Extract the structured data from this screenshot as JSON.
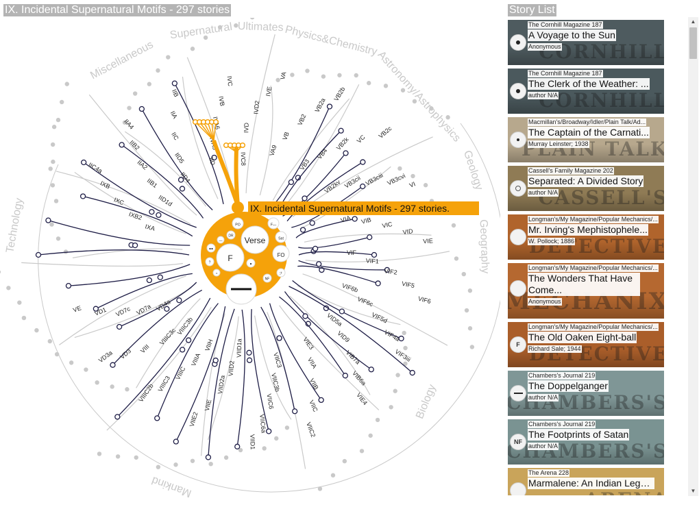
{
  "viz": {
    "title": "IX. Incidental Supernatural Motifs - 297 stories",
    "tooltip": "IX. Incidental Supernatural Motifs - 297 stories.",
    "center_label": "IX",
    "categories": [
      "Supernatural",
      "Ultimates",
      "Physics&Chemistry",
      "Astronomy/Astrophysics",
      "Geology",
      "Geography",
      "Biology",
      "Mankind",
      "Technology",
      "Miscellaneous"
    ],
    "center_bubbles": [
      {
        "label": "F",
        "tone": "white"
      },
      {
        "label": "",
        "tone": "white"
      },
      {
        "label": "FO",
        "tone": "white"
      },
      {
        "label": "Verse",
        "tone": "white"
      },
      {
        "label": "F—",
        "tone": "white"
      },
      {
        "label": "Sat",
        "tone": "white"
      },
      {
        "label": "PO",
        "tone": "white"
      },
      {
        "label": "DR",
        "tone": "white"
      },
      {
        "label": "?",
        "tone": "white"
      },
      {
        "label": "●●",
        "tone": "white"
      },
      {
        "label": "NF",
        "tone": "white"
      },
      {
        "label": "ℱ",
        "tone": "white"
      },
      {
        "label": "●",
        "tone": "white"
      },
      {
        "label": "○",
        "tone": "white"
      },
      {
        "label": "—",
        "tone": "white"
      }
    ],
    "node_labels": [
      "IXA",
      "IXB2",
      "IXC",
      "IXB",
      "IIC4a",
      "IID1d",
      "IIB1",
      "IIA2",
      "IIB2",
      "IIA4",
      "IID4",
      "IID5",
      "IIC",
      "IIA",
      "IIB",
      "IID",
      "IVA5",
      "IVA6",
      "IVB",
      "IVC",
      "IVC8",
      "IVD",
      "IVD2",
      "IVE",
      "VA",
      "VA9",
      "VB",
      "VB2",
      "VB2a",
      "VB2b",
      "VB3",
      "VB4",
      "VB2k",
      "VC",
      "VB2c",
      "VB2kv",
      "VB3cii",
      "VB3ciii",
      "VB3cvi",
      "VI",
      "VIA",
      "VIB",
      "VIC",
      "VID",
      "VIE",
      "VIF",
      "VIF1",
      "VIF2",
      "VIF5",
      "VIF6",
      "VIF6b",
      "VIF6c",
      "VIF5d",
      "VIF4a",
      "VIF3iii",
      "VID5a",
      "VID9",
      "VIB7a",
      "VIB6a",
      "VIE4",
      "VIE3",
      "VIIA",
      "VIIB",
      "VIIC",
      "VIIC2",
      "VIIC3",
      "VIIC3b",
      "VIIC6",
      "VIIC6a",
      "VIID1",
      "VIID1a",
      "VIID2",
      "VIID2a",
      "VIIE",
      "VIIE2",
      "VIIH",
      "VIIIA",
      "VIIIC",
      "VIIIC3",
      "VIIIC2b",
      "VIIIC3b",
      "VIIIC3c",
      "VIII",
      "VD3",
      "VD3a",
      "VD4a",
      "VD7a",
      "VD7c",
      "VD1",
      "VE"
    ]
  },
  "story_list": {
    "title": "Story List",
    "stories": [
      {
        "publication": "The Cornhill Magazine 187",
        "title": "A Voyage to the Sun",
        "author": "Anonymous",
        "icon": "dot",
        "cover_text": "CORNHILL",
        "cover_color": "#4e5b5f"
      },
      {
        "publication": "The Cornhill Magazine 187",
        "title": "The Clerk of the Weather: ...",
        "author": "author N/A",
        "icon": "dot",
        "cover_text": "CORNHILL",
        "cover_color": "#4b595d"
      },
      {
        "publication": "Macmillan's/Broadway/Idler/Plain Talk/Ad...",
        "title": "The Captain of the Carnati...",
        "author": "Murray Leinster; 1938",
        "icon": "small-dot",
        "cover_text": "PLAIN TALK",
        "cover_color": "#b7a88d"
      },
      {
        "publication": "Cassell's Family Magazine 202",
        "title": "Separated: A Divided Story",
        "author": "author N/A",
        "icon": "ring",
        "cover_text": "CASSELL'S",
        "cover_color": "#8f7b55"
      },
      {
        "publication": "Longman's/My Magazine/Popular Mechanics/...",
        "title": "Mr. Irving's Mephistophele...",
        "author": "W. Pollock; 1886",
        "icon": "blank",
        "cover_text": "DETECTIVE",
        "cover_color": "#b0642c"
      },
      {
        "publication": "Longman's/My Magazine/Popular Mechanics/...",
        "title": "The Wonders That Have Come...",
        "author": "Anonymous",
        "icon": "blank",
        "cover_text": "MECHANIX",
        "cover_color": "#b56830"
      },
      {
        "publication": "Longman's/My Magazine/Popular Mechanics/...",
        "title": "The Old Oaken Eight-ball",
        "author": "Richard Sale; 1944",
        "icon": "F",
        "cover_text": "DETECTIVE",
        "cover_color": "#aa5e2a"
      },
      {
        "publication": "Chambers's Journal 219",
        "title": "The Doppelganger",
        "author": "author N/A",
        "icon": "bar",
        "cover_text": "CHAMBERS'S",
        "cover_color": "#7f9696"
      },
      {
        "publication": "Chambers's Journal 219",
        "title": "The Footprints of Satan",
        "author": "author N/A",
        "icon": "NF",
        "cover_text": "CHAMBERS'S",
        "cover_color": "#7a9392"
      },
      {
        "publication": "The Arena 228",
        "title": "Marmalene: An Indian Legen...",
        "author": "",
        "icon": "blank",
        "cover_text": "ARENA",
        "cover_color": "#c9a45a"
      }
    ]
  },
  "colors": {
    "highlight": "#f5a20a",
    "link": "#1d1c45",
    "faded": "#c9c9c9",
    "header_bg": "#b4b4b4"
  }
}
